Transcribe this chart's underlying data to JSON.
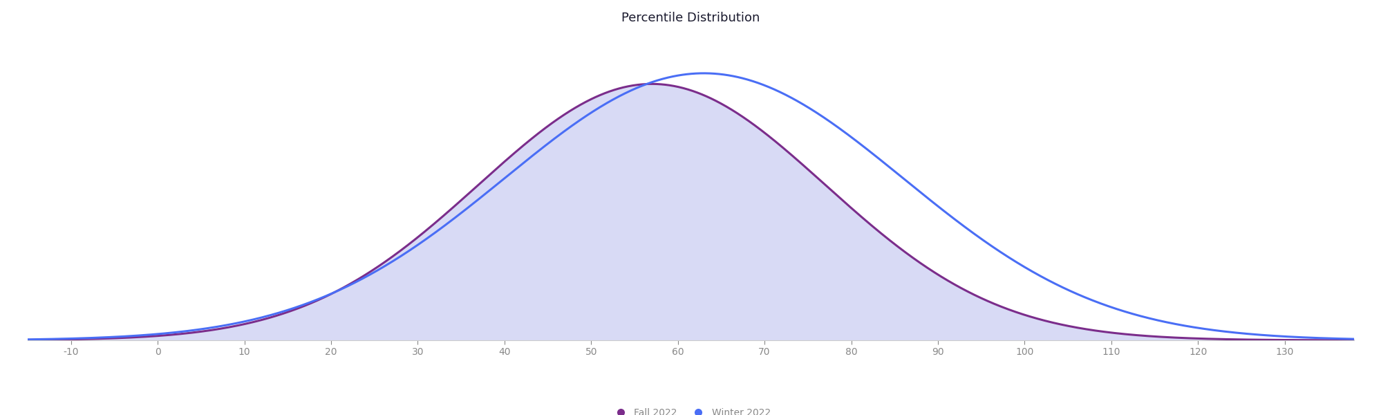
{
  "title": "Percentile Distribution",
  "title_fontsize": 13,
  "title_color": "#1a1a2e",
  "background_color": "#ffffff",
  "fill_color": "#d8daf5",
  "fall_color": "#7b2d8b",
  "winter_color": "#4a6ef5",
  "line_width": 2.2,
  "fall_mean": 57,
  "fall_std": 20,
  "winter_mean": 63,
  "winter_std": 23,
  "x_min": -15,
  "x_max": 138,
  "x_ticks": [
    -10,
    0,
    10,
    20,
    30,
    40,
    50,
    60,
    70,
    80,
    90,
    100,
    110,
    120,
    130
  ],
  "legend_labels": [
    "Fall 2022",
    "Winter 2022"
  ],
  "legend_fall_color": "#7b2d8b",
  "legend_winter_color": "#4a6ef5",
  "axis_tick_color": "#888888",
  "axis_tick_fontsize": 10,
  "spine_color": "#cccccc"
}
